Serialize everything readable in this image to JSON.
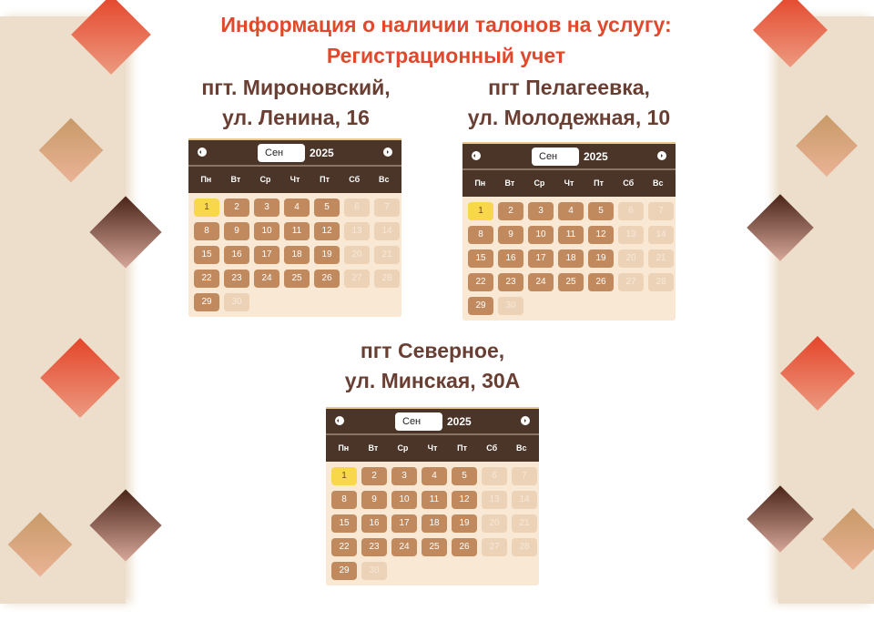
{
  "header": {
    "title_line1": "Информация о наличии талонов на услугу:",
    "title_line2": "Регистрационный учет"
  },
  "colors": {
    "title": "#e2482b",
    "location": "#6a3f33",
    "calendar_header": "#4a3528",
    "available": "#c08a5e",
    "selected": "#f8d84a",
    "disabled": "#ecd2b6"
  },
  "calendars": [
    {
      "location_line1": "пгт. Мироновский,",
      "location_line2": "ул. Ленина, 16",
      "month": "Сен",
      "year": "2025"
    },
    {
      "location_line1": "пгт Пелагеевка,",
      "location_line2": "ул. Молодежная, 10",
      "month": "Сен",
      "year": "2025"
    },
    {
      "location_line1": "пгт Северное,",
      "location_line2": "ул. Минская, 30А",
      "month": "Сен",
      "year": "2025"
    }
  ],
  "weekdays": [
    "Пн",
    "Вт",
    "Ср",
    "Чт",
    "Пт",
    "Сб",
    "Вс"
  ],
  "days_in_month": 30,
  "first_weekday_index": 0,
  "selected_day": 1,
  "available_days": [
    2,
    3,
    4,
    5,
    8,
    9,
    10,
    11,
    12,
    15,
    16,
    17,
    18,
    19,
    22,
    23,
    24,
    25,
    26,
    29
  ],
  "disabled_days": [
    6,
    7,
    13,
    14,
    20,
    21,
    27,
    28,
    30
  ]
}
